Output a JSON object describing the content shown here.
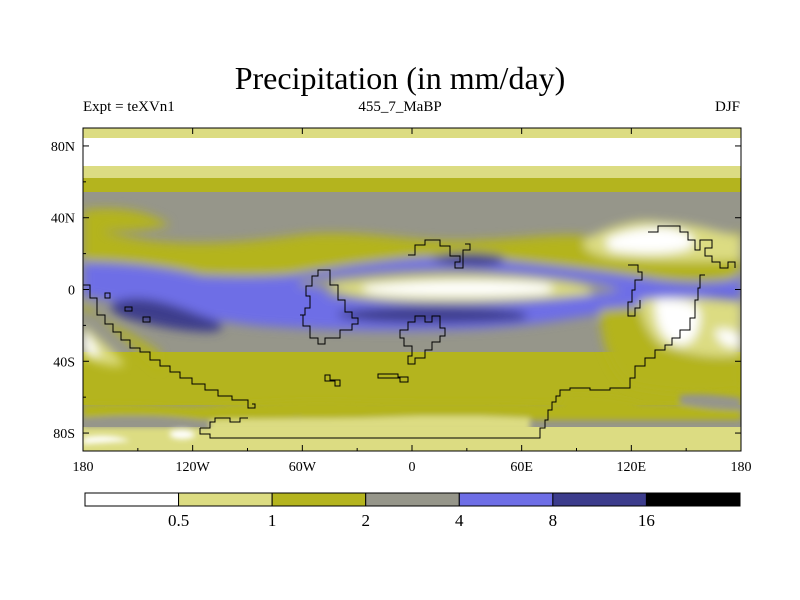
{
  "chart_data": {
    "type": "heatmap",
    "title": "Precipitation (in mm/day)",
    "subtitle_left": "Expt = teXVn1",
    "subtitle_center": "455_7_MaBP",
    "subtitle_right": "DJF",
    "x_ticks": [
      "180",
      "120W",
      "60W",
      "0",
      "60E",
      "120E",
      "180"
    ],
    "x_tick_values": [
      -180,
      -120,
      -60,
      0,
      60,
      120,
      180
    ],
    "y_ticks": [
      "80N",
      "40N",
      "0",
      "40S",
      "80S"
    ],
    "y_tick_values": [
      80,
      40,
      0,
      -40,
      -80
    ],
    "xlim": [
      -180,
      180
    ],
    "ylim": [
      -90,
      90
    ],
    "colorbar": {
      "levels": [
        "0.5",
        "1",
        "2",
        "4",
        "8",
        "16"
      ],
      "level_values": [
        0.5,
        1,
        2,
        4,
        8,
        16
      ],
      "colors": [
        "#ffffff",
        "#dcdc82",
        "#b4b41e",
        "#96968a",
        "#6e6ee6",
        "#3c3c8c",
        "#000000"
      ]
    }
  }
}
